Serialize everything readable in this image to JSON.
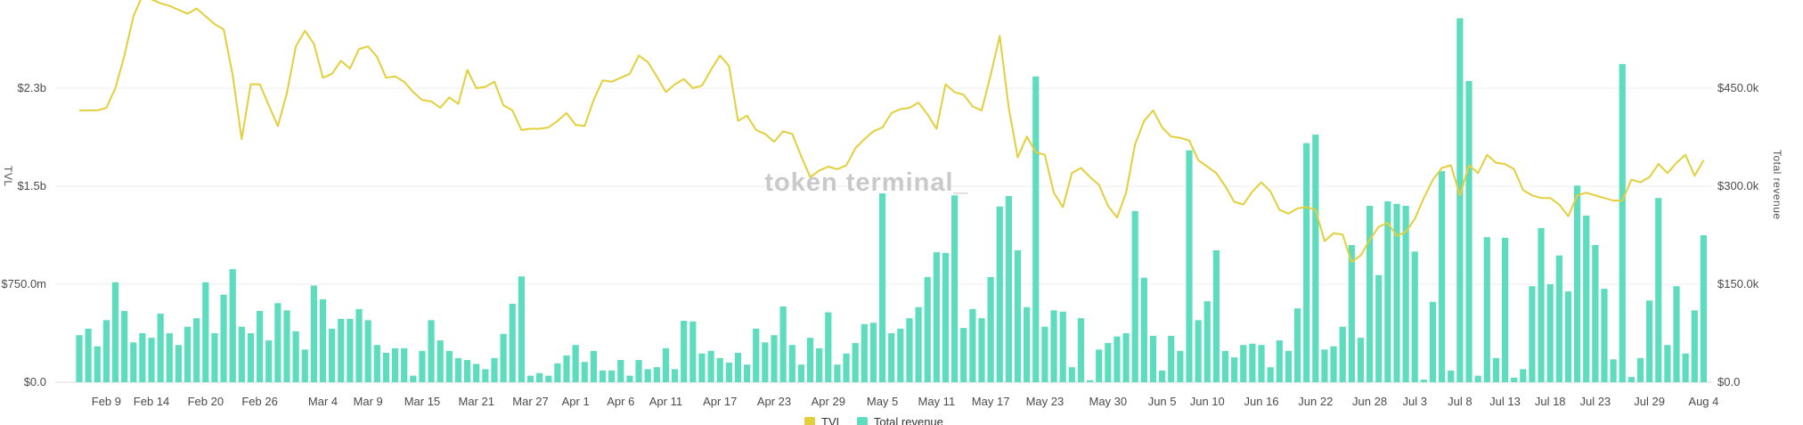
{
  "watermark": "token terminal_",
  "left_axis": {
    "title": "TVL",
    "ticks": [
      {
        "label": "$2.3b",
        "value": 2.25
      },
      {
        "label": "$1.5b",
        "value": 1.5
      },
      {
        "label": "$750.0m",
        "value": 0.75
      },
      {
        "label": "$0.0",
        "value": 0
      }
    ]
  },
  "right_axis": {
    "title": "Total revenue",
    "ticks": [
      {
        "label": "$450.0k",
        "value": 450
      },
      {
        "label": "$300.0k",
        "value": 300
      },
      {
        "label": "$150.0k",
        "value": 150
      },
      {
        "label": "$0.0",
        "value": 0
      }
    ]
  },
  "legend": {
    "tvl": "TVL",
    "revenue": "Total revenue"
  },
  "colors": {
    "tvl_line": "#e3cf3c",
    "revenue_bar": "#5edcbe",
    "gridline": "#ededed",
    "baseline": "#dddddd"
  },
  "chart_data": {
    "type": "bar+line",
    "x_unit": "day",
    "left_ylim": [
      0,
      2.93
    ],
    "right_ylim": [
      0,
      586
    ],
    "grid": true,
    "legend_position": "bottom-center",
    "x_ticks": [
      {
        "label": "Feb 9",
        "day": 3
      },
      {
        "label": "Feb 14",
        "day": 8
      },
      {
        "label": "Feb 20",
        "day": 14
      },
      {
        "label": "Feb 26",
        "day": 20
      },
      {
        "label": "Mar 4",
        "day": 27
      },
      {
        "label": "Mar 9",
        "day": 32
      },
      {
        "label": "Mar 15",
        "day": 38
      },
      {
        "label": "Mar 21",
        "day": 44
      },
      {
        "label": "Mar 27",
        "day": 50
      },
      {
        "label": "Apr 1",
        "day": 55
      },
      {
        "label": "Apr 6",
        "day": 60
      },
      {
        "label": "Apr 11",
        "day": 65
      },
      {
        "label": "Apr 17",
        "day": 71
      },
      {
        "label": "Apr 23",
        "day": 77
      },
      {
        "label": "Apr 29",
        "day": 83
      },
      {
        "label": "May 5",
        "day": 89
      },
      {
        "label": "May 11",
        "day": 95
      },
      {
        "label": "May 17",
        "day": 101
      },
      {
        "label": "May 23",
        "day": 107
      },
      {
        "label": "May 30",
        "day": 114
      },
      {
        "label": "Jun 5",
        "day": 120
      },
      {
        "label": "Jun 10",
        "day": 125
      },
      {
        "label": "Jun 16",
        "day": 131
      },
      {
        "label": "Jun 22",
        "day": 137
      },
      {
        "label": "Jun 28",
        "day": 143
      },
      {
        "label": "Jul 3",
        "day": 148
      },
      {
        "label": "Jul 8",
        "day": 153
      },
      {
        "label": "Jul 13",
        "day": 158
      },
      {
        "label": "Jul 18",
        "day": 163
      },
      {
        "label": "Jul 23",
        "day": 168
      },
      {
        "label": "Jul 29",
        "day": 174
      },
      {
        "label": "Aug 4",
        "day": 180
      }
    ],
    "series": [
      {
        "name": "Total revenue",
        "type": "bar",
        "axis": "right",
        "unit": "USD_thousands",
        "color": "#5edcbe",
        "values": [
          72,
          82,
          55,
          95,
          153,
          109,
          61,
          75,
          68,
          105,
          75,
          57,
          85,
          98,
          153,
          75,
          134,
          173,
          85,
          75,
          109,
          64,
          121,
          110,
          78,
          50,
          148,
          127,
          82,
          97,
          97,
          112,
          95,
          57,
          45,
          52,
          52,
          10,
          48,
          95,
          64,
          48,
          37,
          34,
          28,
          20,
          37,
          74,
          120,
          162,
          10,
          14,
          10,
          29,
          41,
          57,
          31,
          48,
          18,
          18,
          34,
          10,
          34,
          20,
          23,
          52,
          20,
          94,
          93,
          44,
          48,
          37,
          30,
          45,
          27,
          82,
          61,
          72,
          116,
          57,
          27,
          68,
          52,
          107,
          27,
          44,
          60,
          89,
          91,
          289,
          75,
          82,
          98,
          115,
          161,
          199,
          198,
          286,
          83,
          112,
          98,
          161,
          269,
          285,
          202,
          115,
          468,
          85,
          110,
          108,
          23,
          98,
          3,
          50,
          60,
          70,
          75,
          262,
          160,
          71,
          18,
          71,
          48,
          355,
          95,
          124,
          202,
          48,
          38,
          57,
          59,
          57,
          23,
          64,
          48,
          113,
          366,
          379,
          50,
          55,
          85,
          210,
          68,
          270,
          164,
          277,
          273,
          270,
          200,
          4,
          123,
          323,
          18,
          557,
          461,
          10,
          222,
          37,
          221,
          7,
          20,
          147,
          236,
          150,
          194,
          139,
          301,
          255,
          210,
          143,
          35,
          487,
          8,
          37,
          125,
          282,
          57,
          147,
          44,
          110,
          225
        ]
      },
      {
        "name": "TVL",
        "type": "line",
        "axis": "left",
        "unit": "USD_billions",
        "color": "#e3cf3c",
        "values": [
          2.08,
          2.08,
          2.08,
          2.1,
          2.25,
          2.5,
          2.8,
          2.96,
          2.93,
          2.9,
          2.88,
          2.85,
          2.82,
          2.86,
          2.8,
          2.74,
          2.7,
          2.35,
          1.86,
          2.28,
          2.28,
          2.12,
          1.96,
          2.21,
          2.57,
          2.69,
          2.59,
          2.33,
          2.36,
          2.46,
          2.4,
          2.55,
          2.57,
          2.49,
          2.33,
          2.34,
          2.3,
          2.22,
          2.16,
          2.15,
          2.1,
          2.18,
          2.13,
          2.39,
          2.25,
          2.26,
          2.3,
          2.12,
          2.08,
          1.93,
          1.94,
          1.94,
          1.95,
          2.0,
          2.06,
          1.97,
          1.96,
          2.16,
          2.31,
          2.3,
          2.33,
          2.36,
          2.5,
          2.45,
          2.34,
          2.22,
          2.28,
          2.32,
          2.25,
          2.27,
          2.39,
          2.5,
          2.42,
          2.0,
          2.04,
          1.93,
          1.9,
          1.84,
          1.92,
          1.9,
          1.73,
          1.57,
          1.62,
          1.65,
          1.63,
          1.66,
          1.79,
          1.86,
          1.92,
          1.95,
          2.06,
          2.09,
          2.1,
          2.14,
          2.05,
          1.94,
          2.28,
          2.22,
          2.2,
          2.11,
          2.08,
          2.35,
          2.65,
          2.1,
          1.72,
          1.88,
          1.76,
          1.74,
          1.45,
          1.34,
          1.6,
          1.64,
          1.57,
          1.51,
          1.35,
          1.26,
          1.45,
          1.82,
          2.0,
          2.08,
          1.95,
          1.88,
          1.87,
          1.85,
          1.7,
          1.65,
          1.6,
          1.5,
          1.38,
          1.36,
          1.46,
          1.53,
          1.46,
          1.32,
          1.29,
          1.33,
          1.34,
          1.32,
          1.08,
          1.14,
          1.13,
          0.92,
          0.97,
          1.09,
          1.19,
          1.22,
          1.12,
          1.15,
          1.25,
          1.41,
          1.55,
          1.64,
          1.66,
          1.43,
          1.66,
          1.6,
          1.74,
          1.68,
          1.67,
          1.63,
          1.47,
          1.43,
          1.41,
          1.41,
          1.36,
          1.27,
          1.43,
          1.45,
          1.43,
          1.41,
          1.39,
          1.39,
          1.55,
          1.53,
          1.57,
          1.67,
          1.6,
          1.68,
          1.74,
          1.58,
          1.7
        ]
      }
    ]
  }
}
